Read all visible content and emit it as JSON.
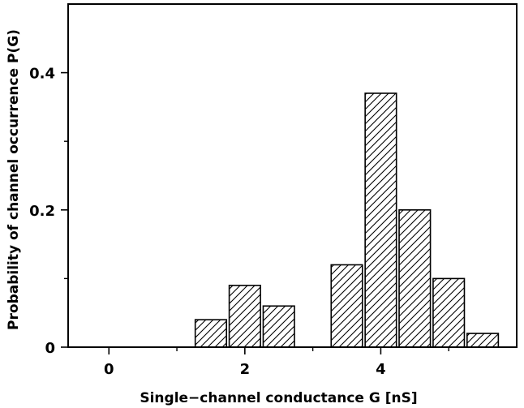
{
  "chart_data": {
    "type": "bar",
    "xlabel": "Single−channel conductance G [nS]",
    "ylabel": "Probability of channel occurrence P(G)",
    "xlim": [
      -0.6,
      6.0
    ],
    "ylim": [
      0,
      0.5
    ],
    "x_ticks": [
      0,
      2,
      4
    ],
    "x_minor_ticks": [
      1,
      3,
      5
    ],
    "y_ticks": [
      0,
      0.2,
      0.4
    ],
    "y_minor_ticks": [
      0.1,
      0.3
    ],
    "bar_width": 0.46,
    "bar_fill": "hatched",
    "bar_color": "#000000",
    "x": [
      1.5,
      2.0,
      2.5,
      3.5,
      4.0,
      4.5,
      5.0,
      5.5
    ],
    "values": [
      0.04,
      0.09,
      0.06,
      0.12,
      0.37,
      0.2,
      0.1,
      0.02
    ],
    "grid": false,
    "legend": "none"
  }
}
